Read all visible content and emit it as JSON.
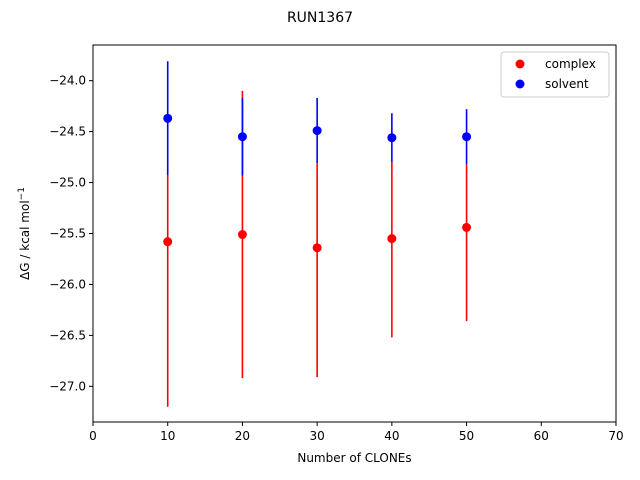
{
  "chart_data": {
    "type": "scatter",
    "title": "RUN1367",
    "xlabel": "Number of CLONEs",
    "ylabel": "ΔG / kcal mol",
    "ylabel_sup": "−1",
    "xlim": [
      0,
      70
    ],
    "ylim": [
      -27.35,
      -23.65
    ],
    "xticks": [
      0,
      10,
      20,
      30,
      40,
      50,
      60,
      70
    ],
    "yticks": [
      -27.0,
      -26.5,
      -26.0,
      -25.5,
      -25.0,
      -24.5,
      -24.0
    ],
    "ytick_labels": [
      "−27.0",
      "−26.5",
      "−26.0",
      "−25.5",
      "−25.0",
      "−24.5",
      "−24.0"
    ],
    "grid": false,
    "legend_position": "upper-right",
    "series": [
      {
        "name": "complex",
        "color": "#ff0000",
        "points": [
          {
            "x": 10,
            "y": -25.58,
            "err_low": -27.2,
            "err_high": -24.93
          },
          {
            "x": 20,
            "y": -25.51,
            "err_low": -26.92,
            "err_high": -24.1
          },
          {
            "x": 30,
            "y": -25.64,
            "err_low": -26.91,
            "err_high": -24.81
          },
          {
            "x": 40,
            "y": -25.55,
            "err_low": -26.52,
            "err_high": -24.8
          },
          {
            "x": 50,
            "y": -25.44,
            "err_low": -26.36,
            "err_high": -24.82
          }
        ]
      },
      {
        "name": "solvent",
        "color": "#0000ff",
        "points": [
          {
            "x": 10,
            "y": -24.37,
            "err_low": -24.93,
            "err_high": -23.81
          },
          {
            "x": 20,
            "y": -24.55,
            "err_low": -24.93,
            "err_high": -24.17
          },
          {
            "x": 30,
            "y": -24.49,
            "err_low": -24.81,
            "err_high": -24.17
          },
          {
            "x": 40,
            "y": -24.56,
            "err_low": -24.8,
            "err_high": -24.32
          },
          {
            "x": 50,
            "y": -24.55,
            "err_low": -24.82,
            "err_high": -24.28
          }
        ]
      }
    ]
  }
}
